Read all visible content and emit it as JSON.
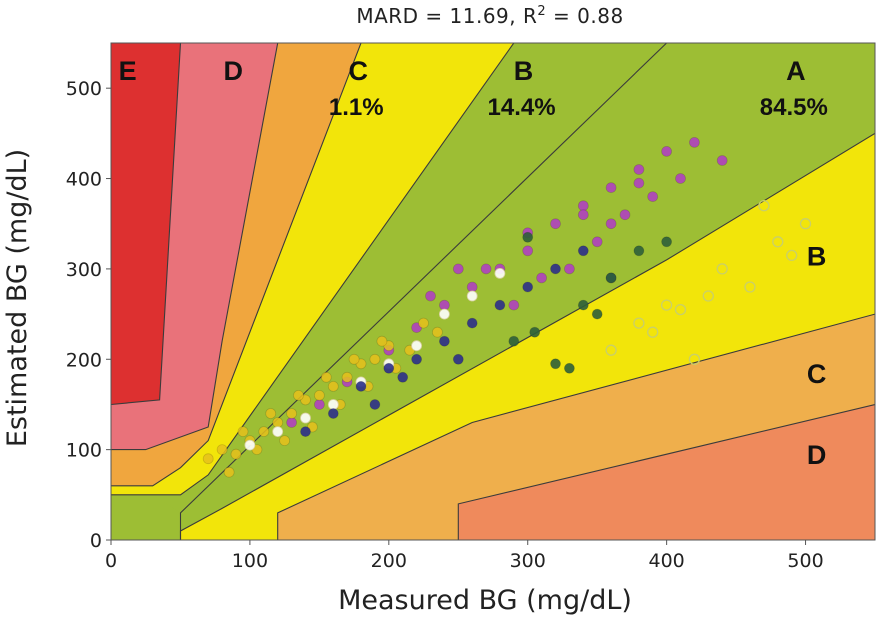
{
  "chart_data": {
    "type": "scatter",
    "title": "MARD = 11.69, R",
    "title_superscript": "2",
    "title_suffix": " = 0.88",
    "xlabel": "Measured BG (mg/dL)",
    "ylabel": "Estimated BG (mg/dL)",
    "xlim": [
      0,
      550
    ],
    "ylim": [
      0,
      550
    ],
    "xticks": [
      0,
      100,
      200,
      300,
      400,
      500
    ],
    "yticks": [
      0,
      100,
      200,
      300,
      400,
      500
    ],
    "grid": false,
    "zone_colors": {
      "A": "#9dbe34",
      "B": "#f2e50a",
      "C": "#f0a63e",
      "D": "#e9727a",
      "E": "#dd3030",
      "D_lower": "#ef8a5c",
      "C_lower": "#efaf4c"
    },
    "zones": [
      {
        "label": "E",
        "x": 12,
        "y": 520
      },
      {
        "label": "D",
        "x": 88,
        "y": 520
      },
      {
        "label": "C",
        "x": 178,
        "y": 520,
        "percent": "1.1%"
      },
      {
        "label": "B",
        "x": 297,
        "y": 520,
        "percent": "14.4%"
      },
      {
        "label": "A",
        "x": 493,
        "y": 520,
        "percent": "84.5%"
      },
      {
        "label": "B",
        "x": 508,
        "y": 315
      },
      {
        "label": "C",
        "x": 508,
        "y": 185
      },
      {
        "label": "D",
        "x": 508,
        "y": 95
      }
    ],
    "boundaries": {
      "E": [
        [
          0,
          150
        ],
        [
          35,
          155
        ],
        [
          50,
          550
        ]
      ],
      "D_upper": [
        [
          0,
          100
        ],
        [
          25,
          100
        ],
        [
          70,
          125
        ],
        [
          80,
          220
        ],
        [
          120,
          550
        ]
      ],
      "C_upper": [
        [
          0,
          60
        ],
        [
          30,
          60
        ],
        [
          50,
          80
        ],
        [
          70,
          110
        ],
        [
          180,
          550
        ]
      ],
      "B_upper": [
        [
          0,
          50
        ],
        [
          50,
          50
        ],
        [
          70,
          72
        ],
        [
          290,
          550
        ]
      ],
      "A_upper": [
        [
          0,
          0
        ],
        [
          50,
          0
        ],
        [
          50,
          30
        ],
        [
          400,
          550
        ]
      ],
      "A_lower": [
        [
          50,
          0
        ],
        [
          50,
          10
        ],
        [
          80,
          35
        ],
        [
          400,
          310
        ],
        [
          550,
          450
        ]
      ],
      "B_lower": [
        [
          120,
          0
        ],
        [
          120,
          30
        ],
        [
          260,
          130
        ],
        [
          550,
          250
        ]
      ],
      "C_lower": [
        [
          250,
          0
        ],
        [
          250,
          40
        ],
        [
          550,
          150
        ]
      ]
    },
    "series": [
      {
        "name": "purple",
        "color": "#b040c0",
        "values": [
          [
            130,
            130
          ],
          [
            150,
            150
          ],
          [
            170,
            175
          ],
          [
            200,
            210
          ],
          [
            220,
            235
          ],
          [
            240,
            260
          ],
          [
            260,
            280
          ],
          [
            280,
            300
          ],
          [
            300,
            320
          ],
          [
            320,
            350
          ],
          [
            340,
            370
          ],
          [
            360,
            390
          ],
          [
            380,
            410
          ],
          [
            400,
            430
          ],
          [
            420,
            440
          ],
          [
            440,
            420
          ],
          [
            230,
            270
          ],
          [
            290,
            260
          ],
          [
            310,
            290
          ],
          [
            330,
            300
          ],
          [
            350,
            330
          ],
          [
            370,
            360
          ],
          [
            390,
            380
          ],
          [
            410,
            400
          ],
          [
            250,
            300
          ],
          [
            270,
            300
          ],
          [
            300,
            340
          ],
          [
            340,
            360
          ],
          [
            360,
            350
          ],
          [
            380,
            395
          ]
        ]
      },
      {
        "name": "yellow",
        "color": "#e6c11c",
        "values": [
          [
            70,
            90
          ],
          [
            80,
            100
          ],
          [
            90,
            95
          ],
          [
            100,
            110
          ],
          [
            110,
            120
          ],
          [
            120,
            130
          ],
          [
            130,
            140
          ],
          [
            140,
            155
          ],
          [
            150,
            160
          ],
          [
            160,
            170
          ],
          [
            170,
            180
          ],
          [
            180,
            195
          ],
          [
            190,
            200
          ],
          [
            200,
            215
          ],
          [
            85,
            75
          ],
          [
            95,
            120
          ],
          [
            105,
            100
          ],
          [
            115,
            140
          ],
          [
            125,
            110
          ],
          [
            135,
            160
          ],
          [
            145,
            125
          ],
          [
            155,
            180
          ],
          [
            165,
            150
          ],
          [
            175,
            200
          ],
          [
            185,
            170
          ],
          [
            195,
            220
          ],
          [
            205,
            190
          ],
          [
            215,
            210
          ],
          [
            225,
            240
          ],
          [
            235,
            230
          ]
        ]
      },
      {
        "name": "white",
        "color": "#ffffff",
        "values": [
          [
            100,
            105
          ],
          [
            120,
            120
          ],
          [
            140,
            135
          ],
          [
            160,
            150
          ],
          [
            180,
            175
          ],
          [
            200,
            195
          ],
          [
            220,
            215
          ],
          [
            240,
            250
          ],
          [
            260,
            270
          ],
          [
            280,
            295
          ]
        ]
      },
      {
        "name": "navy",
        "color": "#2c2f8a",
        "values": [
          [
            140,
            120
          ],
          [
            160,
            140
          ],
          [
            180,
            170
          ],
          [
            200,
            190
          ],
          [
            220,
            200
          ],
          [
            240,
            220
          ],
          [
            260,
            240
          ],
          [
            280,
            260
          ],
          [
            300,
            280
          ],
          [
            320,
            300
          ],
          [
            340,
            320
          ],
          [
            360,
            290
          ],
          [
            250,
            200
          ],
          [
            210,
            180
          ],
          [
            190,
            150
          ]
        ]
      },
      {
        "name": "green",
        "color": "#2f5f3a",
        "values": [
          [
            290,
            220
          ],
          [
            305,
            230
          ],
          [
            320,
            195
          ],
          [
            340,
            260
          ],
          [
            360,
            290
          ],
          [
            380,
            320
          ],
          [
            400,
            330
          ],
          [
            300,
            335
          ],
          [
            330,
            190
          ],
          [
            350,
            250
          ]
        ]
      },
      {
        "name": "outline",
        "color": "#c9cf6a",
        "values": [
          [
            360,
            210
          ],
          [
            380,
            240
          ],
          [
            400,
            260
          ],
          [
            420,
            200
          ],
          [
            440,
            300
          ],
          [
            460,
            280
          ],
          [
            480,
            330
          ],
          [
            500,
            350
          ],
          [
            470,
            370
          ],
          [
            490,
            315
          ],
          [
            390,
            230
          ],
          [
            410,
            255
          ],
          [
            430,
            270
          ]
        ]
      }
    ]
  }
}
